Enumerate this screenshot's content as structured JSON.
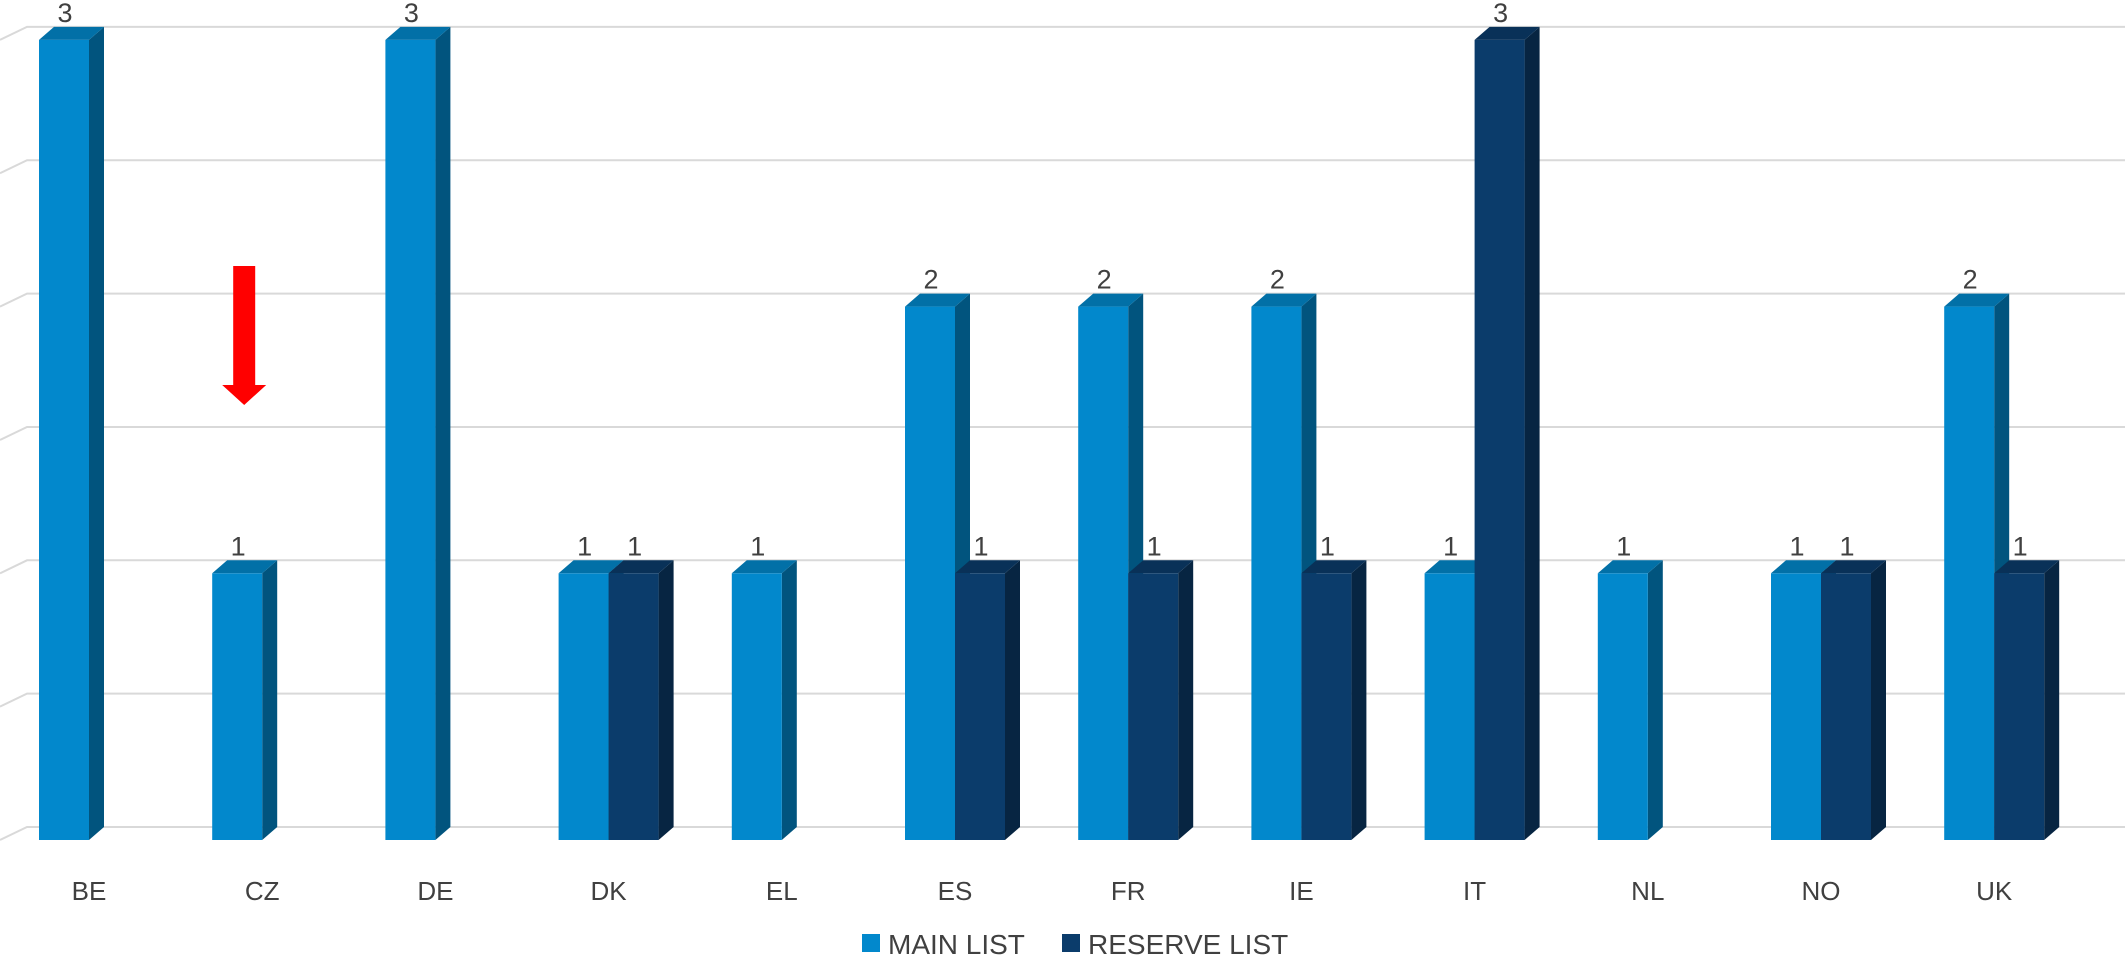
{
  "chart_data": {
    "type": "bar",
    "categories": [
      "BE",
      "CZ",
      "DE",
      "DK",
      "EL",
      "ES",
      "FR",
      "IE",
      "IT",
      "NL",
      "NO",
      "UK"
    ],
    "series": [
      {
        "name": "MAIN LIST",
        "values": [
          3,
          1,
          3,
          1,
          1,
          2,
          2,
          2,
          1,
          1,
          1,
          2
        ]
      },
      {
        "name": "RESERVE LIST",
        "values": [
          null,
          null,
          null,
          1,
          null,
          1,
          1,
          1,
          3,
          null,
          1,
          1
        ]
      }
    ],
    "ylim": [
      0,
      3
    ],
    "grid": true,
    "style": "3d-column",
    "legend_position": "bottom",
    "colors": {
      "MAIN LIST": "#0288cc",
      "RESERVE LIST": "#0b3c6b",
      "grid": "#d9d9d9",
      "text": "#404040",
      "annotation": "#ff0000"
    },
    "annotations": [
      {
        "type": "down-arrow",
        "category": "CZ",
        "color": "#ff0000"
      }
    ]
  }
}
